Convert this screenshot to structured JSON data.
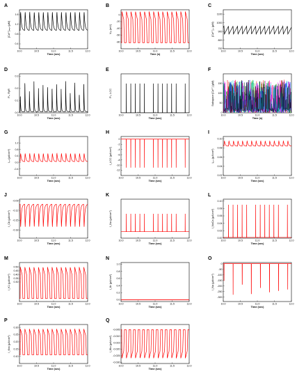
{
  "chart_data": [
    {
      "id": "A",
      "type": "line",
      "xlabel": "Time (sec)",
      "ylabel": "[Ca²⁺]ₘᵧₒ (μM)",
      "color": "#000000",
      "ylim": [
        0.2,
        1.8
      ],
      "yticks": [
        "1.6",
        "1.2",
        "0.8",
        "0.4"
      ],
      "xlim": [
        10,
        12
      ],
      "xticks": [
        "10.0",
        "10.5",
        "11.0",
        "11.5",
        "12.0"
      ],
      "series": [
        {
          "kind": "osc",
          "period": 0.133,
          "base": 0.95,
          "peak": 1.7,
          "shape": "smooth"
        }
      ]
    },
    {
      "id": "B",
      "type": "line",
      "xlabel": "Time (s)",
      "ylabel": "Vₘ (mV)",
      "color": "#ff0000",
      "ylim": [
        -100,
        15
      ],
      "yticks": [
        "0",
        "-20",
        "-40",
        "-60",
        "-80"
      ],
      "xlim": [
        10,
        12
      ],
      "xticks": [
        "10.0",
        "10.5",
        "11.0",
        "11.5",
        "12.0"
      ],
      "series": [
        {
          "kind": "osc",
          "period": 0.133,
          "base": -82,
          "peak": 10,
          "shape": "ap"
        }
      ]
    },
    {
      "id": "C",
      "type": "line",
      "xlabel": "Time (sec)",
      "ylabel": "[Ca²⁺]ₛᵣ (μM)",
      "color": "#000000",
      "ylim": [
        700,
        1150
      ],
      "yticks": [
        "1100",
        "1000",
        "900",
        "800",
        "700"
      ],
      "xlim": [
        10,
        12
      ],
      "xticks": [
        "10.0",
        "10.5",
        "11.0",
        "11.5",
        "12.0"
      ],
      "series": [
        {
          "kind": "osc",
          "period": 0.133,
          "base": 870,
          "peak": 960,
          "shape": "inv"
        }
      ]
    },
    {
      "id": "D",
      "type": "line",
      "xlabel": "Time (sec)",
      "ylabel": "Pₒ, RyR",
      "color": "#000000",
      "ylim": [
        0,
        0.32
      ],
      "yticks": [
        "0.3",
        "0.2",
        "0.1",
        "0.0"
      ],
      "xlim": [
        10,
        12
      ],
      "xticks": [
        "10.0",
        "10.5",
        "11.0",
        "11.5",
        "12.0"
      ],
      "series": [
        {
          "kind": "osc",
          "period": 0.133,
          "base": 0.01,
          "peak": 0.27,
          "shape": "spike",
          "varied": true
        }
      ]
    },
    {
      "id": "E",
      "type": "line",
      "xlabel": "Time (sec)",
      "ylabel": "Pₒ, LCC",
      "color": "#000000",
      "ylim": [
        0,
        1.0
      ],
      "yticks": [],
      "xlim": [
        10,
        12
      ],
      "xticks": [
        "10.0",
        "10.5",
        "11.0",
        "11.5",
        "12.0"
      ],
      "series": [
        {
          "kind": "osc",
          "period": 0.133,
          "base": 0.0,
          "peak": 0.75,
          "shape": "needle"
        }
      ]
    },
    {
      "id": "F",
      "type": "line",
      "xlabel": "Time (s)",
      "ylabel": "Subspace [Ca²⁺] (μM)",
      "color": "#000000",
      "ylim": [
        0,
        200
      ],
      "yticks": [
        "150",
        "100",
        "50",
        "0"
      ],
      "xlim": [
        10,
        12
      ],
      "xticks": [
        "10.0",
        "10.5",
        "11.0",
        "11.5",
        "12.0"
      ],
      "series": [
        {
          "kind": "multi",
          "colors": [
            "#ff0000",
            "#00aa00",
            "#0000ff",
            "#ff00ff",
            "#00cccc",
            "#000000"
          ]
        }
      ]
    },
    {
      "id": "G",
      "type": "line",
      "xlabel": "Time (sec)",
      "ylabel": "I꜀ₐₗ (μA/cm²)",
      "color": "#ff0000",
      "ylim": [
        -0.8,
        1.6
      ],
      "yticks": [
        "1.2",
        "0.8",
        "0.4",
        "0.0",
        "-0.4"
      ],
      "xlim": [
        10,
        12
      ],
      "xticks": [
        "10.0",
        "10.5",
        "11.0",
        "11.5",
        "12.0"
      ],
      "series": [
        {
          "kind": "osc",
          "period": 0.133,
          "base": 0.05,
          "peak": 0.55,
          "shape": "smooth"
        }
      ]
    },
    {
      "id": "H",
      "type": "line",
      "xlabel": "Time (sec)",
      "ylabel": "I_LCC (μA/cm²)",
      "color": "#ff0000",
      "ylim": [
        -14,
        1
      ],
      "yticks": [
        "0",
        "-2",
        "-4",
        "-6",
        "-8",
        "-10",
        "-12"
      ],
      "xlim": [
        10,
        12
      ],
      "xticks": [
        "10.0",
        "10.5",
        "11.0",
        "11.5",
        "12.0"
      ],
      "series": [
        {
          "kind": "osc",
          "period": 0.133,
          "base": 0,
          "peak": -11,
          "shape": "needle"
        }
      ]
    },
    {
      "id": "I",
      "type": "line",
      "xlabel": "Time (sec)",
      "ylabel": "Iₚ꜀ₐ (μA/cm²)",
      "color": "#ff0000",
      "ylim": [
        0.02,
        0.105
      ],
      "yticks": [
        "0.10",
        "0.08",
        "0.06",
        "0.04",
        "0.02"
      ],
      "xlim": [
        10,
        12
      ],
      "xticks": [
        "10.0",
        "10.5",
        "11.0",
        "11.5",
        "12.0"
      ],
      "series": [
        {
          "kind": "osc",
          "period": 0.133,
          "base": 0.084,
          "peak": 0.095,
          "shape": "smooth"
        }
      ]
    },
    {
      "id": "J",
      "type": "line",
      "xlabel": "Time (sec)",
      "ylabel": "I_Cb (μA/cm²)",
      "color": "#ff0000",
      "ylim": [
        -0.205,
        -0.085
      ],
      "yticks": [
        "-0.09",
        "-0.12",
        "-0.15",
        "-0.18"
      ],
      "xlim": [
        10,
        12
      ],
      "xticks": [
        "10.0",
        "10.5",
        "11.0",
        "11.5",
        "12.0"
      ],
      "series": [
        {
          "kind": "osc",
          "period": 0.133,
          "base": -0.1,
          "peak": -0.17,
          "shape": "smooth"
        }
      ]
    },
    {
      "id": "K",
      "type": "line",
      "xlabel": "Time (sec)",
      "ylabel": "I_Na (μA/cm²)",
      "color": "#ff0000",
      "ylim": [
        -0.02,
        0.1
      ],
      "yticks": [],
      "xlim": [
        10,
        12
      ],
      "xticks": [
        "10.0",
        "10.5",
        "11.0",
        "11.5",
        "12.0"
      ],
      "series": [
        {
          "kind": "osc",
          "period": 0.133,
          "base": 0,
          "peak": 0.055,
          "shape": "needle"
        }
      ]
    },
    {
      "id": "L",
      "type": "line",
      "xlabel": "Time (sec)",
      "ylabel": "I_NaCa (μA/cm²)",
      "color": "#ff0000",
      "ylim": [
        0,
        0.105
      ],
      "yticks": [
        "0.10",
        "0.08",
        "0.06",
        "0.04",
        "0.02",
        "0.00"
      ],
      "xlim": [
        10,
        12
      ],
      "xticks": [
        "10.0",
        "10.5",
        "11.0",
        "11.5",
        "12.0"
      ],
      "series": [
        {
          "kind": "osc",
          "period": 0.133,
          "base": 0.002,
          "peak": 0.09,
          "shape": "needle"
        }
      ]
    },
    {
      "id": "M",
      "type": "line",
      "xlabel": "Time (sec)",
      "ylabel": "I_K1 (μA/cm²)",
      "color": "#ff0000",
      "ylim": [
        0.04,
        0.56
      ],
      "yticks": [
        "0.50",
        "0.45",
        "0.40",
        "0.35",
        "0.30"
      ],
      "xlim": [
        10,
        12
      ],
      "xticks": [
        "10.0",
        "10.5",
        "11.0",
        "11.5",
        "12.0"
      ],
      "series": [
        {
          "kind": "osc",
          "period": 0.133,
          "base": 0.08,
          "peak": 0.5,
          "shape": "ap"
        }
      ]
    },
    {
      "id": "N",
      "type": "line",
      "xlabel": "Time (sec)",
      "ylabel": "I_Kr (μA/cm²)",
      "color": "#ff0000",
      "ylim": [
        -0.05,
        1.05
      ],
      "yticks": [
        "1.0",
        "0.8",
        "0.6",
        "0.4",
        "0.2",
        "0.0"
      ],
      "xlim": [
        10,
        12
      ],
      "xticks": [
        "10.0",
        "10.5",
        "11.0",
        "11.5",
        "12.0"
      ],
      "series": [
        {
          "kind": "flat",
          "value": 0
        }
      ]
    },
    {
      "id": "O",
      "type": "line",
      "xlabel": "Time (sec)",
      "ylabel": "I_Na (μA/cm²)",
      "color": "#ff0000",
      "ylim": [
        -340,
        10
      ],
      "yticks": [
        "0",
        "-50",
        "-100",
        "-150",
        "-200",
        "-250",
        "-300"
      ],
      "xlim": [
        10,
        12
      ],
      "xticks": [
        "10.0",
        "10.5",
        "11.0",
        "11.5",
        "12.0"
      ],
      "series": [
        {
          "kind": "osc",
          "period": 0.267,
          "base": 0,
          "peak": -280,
          "shape": "needle",
          "varied": true
        }
      ]
    },
    {
      "id": "P",
      "type": "line",
      "xlabel": "Time (sec)",
      "ylabel": "I_Kss (μA/cm²)",
      "color": "#ff0000",
      "ylim": [
        0.05,
        0.32
      ],
      "yticks": [
        "0.30",
        "0.25",
        "0.20",
        "0.15",
        "0.10"
      ],
      "xlim": [
        10,
        12
      ],
      "xticks": [
        "10.0",
        "10.5",
        "11.0",
        "11.5",
        "12.0"
      ],
      "series": [
        {
          "kind": "osc",
          "period": 0.133,
          "base": 0.11,
          "peak": 0.29,
          "shape": "ap"
        }
      ]
    },
    {
      "id": "Q",
      "type": "line",
      "xlabel": "Time (sec)",
      "ylabel": "I_Kto (μA/cm²)",
      "color": "#ff0000",
      "ylim": [
        -0.031,
        -0.001
      ],
      "yticks": [
        "-0.005",
        "-0.010",
        "-0.015",
        "-0.020",
        "-0.025",
        "-0.030"
      ],
      "xlim": [
        10,
        12
      ],
      "xticks": [
        "10.0",
        "10.5",
        "11.0",
        "11.5",
        "12.0"
      ],
      "series": [
        {
          "kind": "osc",
          "period": 0.133,
          "base": -0.005,
          "peak": -0.027,
          "shape": "ap"
        }
      ]
    }
  ]
}
